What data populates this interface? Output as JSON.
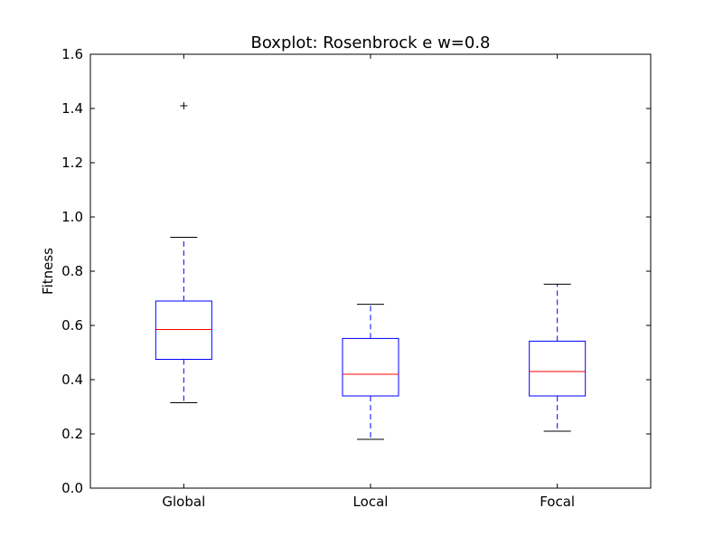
{
  "chart_data": {
    "type": "boxplot",
    "title": "Boxplot: Rosenbrock e w=0.8",
    "xlabel": "",
    "ylabel": "Fitness",
    "ylim": [
      0.0,
      1.6
    ],
    "yticks": [
      "0.0",
      "0.2",
      "0.4",
      "0.6",
      "0.8",
      "1.0",
      "1.2",
      "1.4",
      "1.6"
    ],
    "grid": false,
    "categories": [
      "Global",
      "Local",
      "Focal"
    ],
    "boxes": [
      {
        "whisker_low": 0.315,
        "q1": 0.475,
        "median": 0.585,
        "q3": 0.69,
        "whisker_high": 0.925,
        "outliers": [
          1.41
        ]
      },
      {
        "whisker_low": 0.18,
        "q1": 0.34,
        "median": 0.42,
        "q3": 0.552,
        "whisker_high": 0.678,
        "outliers": []
      },
      {
        "whisker_low": 0.21,
        "q1": 0.34,
        "median": 0.43,
        "q3": 0.542,
        "whisker_high": 0.752,
        "outliers": []
      }
    ],
    "colors": {
      "box": "#0000ff",
      "median": "#ff0000",
      "whisker": "#0000ff",
      "cap": "#000000",
      "outlier": "#000000"
    }
  }
}
